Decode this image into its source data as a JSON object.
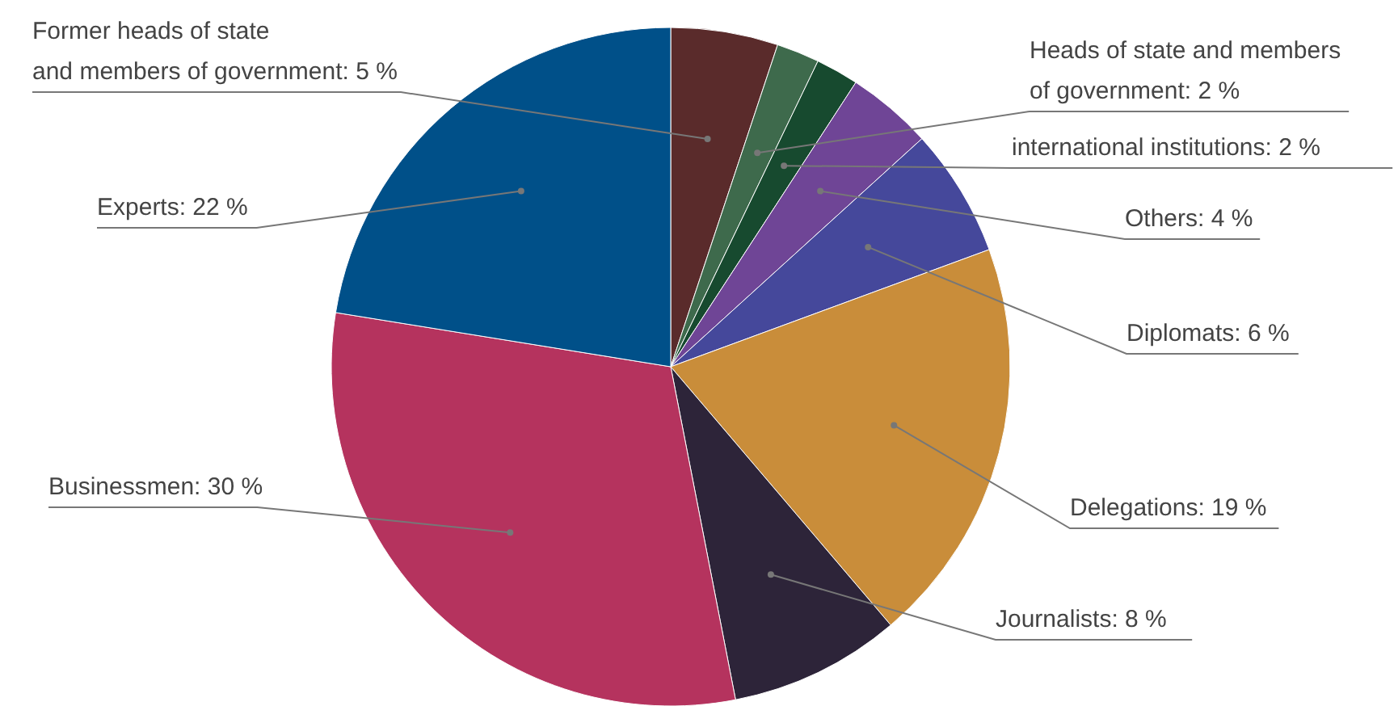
{
  "chart_data": {
    "type": "pie",
    "categories": [
      "Former heads of state and members of government",
      "Heads of state and members of government",
      "international institutions",
      "Others",
      "Diplomats",
      "Delegations",
      "Journalists",
      "Businessmen",
      "Experts"
    ],
    "values": [
      5,
      2,
      2,
      4,
      6,
      19,
      8,
      30,
      22
    ],
    "value_labels": [
      "5 %",
      "2 %",
      "2 %",
      "4 %",
      "6 %",
      "19 %",
      "8 %",
      "30 %",
      "22 %"
    ],
    "colors": [
      "#5a2b2b",
      "#3e6a4c",
      "#174a2f",
      "#6f4596",
      "#45489b",
      "#c98d3a",
      "#2d2439",
      "#b5335e",
      "#005089"
    ]
  }
}
